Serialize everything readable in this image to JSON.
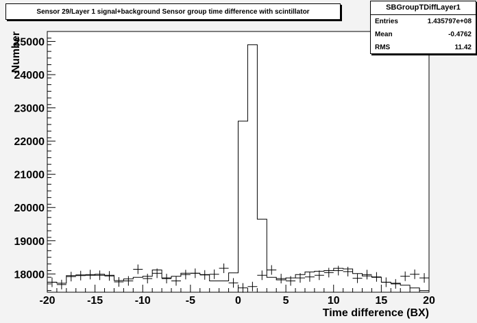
{
  "chart_data": {
    "type": "histogram",
    "title": "Sensor 29/Layer 1 signal+background Sensor group time difference with scintillator",
    "xlabel": "Time difference (BX)",
    "ylabel": "Number",
    "xlim": [
      -20,
      20
    ],
    "ylim": [
      17450,
      25300
    ],
    "x_ticks": [
      -20,
      -15,
      -10,
      -5,
      0,
      5,
      10,
      15,
      20
    ],
    "y_ticks": [
      18000,
      19000,
      20000,
      21000,
      22000,
      23000,
      24000,
      25000
    ],
    "stats": {
      "name": "SBGroupTDiffLayer1",
      "rows": [
        {
          "label": "Entries",
          "value": "1.435797e+08"
        },
        {
          "label": "Mean",
          "value": "-0.4762"
        },
        {
          "label": "RMS",
          "value": "11.42"
        }
      ]
    },
    "histogram": {
      "bin_width": 1,
      "bin_edges_start": -20,
      "values": [
        17750,
        17720,
        17950,
        17970,
        17960,
        17990,
        17960,
        17800,
        17850,
        17900,
        17930,
        18120,
        17880,
        17930,
        18020,
        18020,
        17980,
        17790,
        17790,
        18030,
        22600,
        24900,
        19650,
        17900,
        17820,
        17880,
        17980,
        18060,
        18080,
        18100,
        18170,
        18150,
        18010,
        17940,
        17900,
        17750,
        17720,
        17660,
        17580,
        17500
      ]
    },
    "markers": {
      "x": [
        -19.5,
        -18.5,
        -17.5,
        -16.5,
        -15.5,
        -14.5,
        -13.5,
        -12.5,
        -11.5,
        -10.5,
        -9.5,
        -8.5,
        -7.5,
        -6.5,
        -5.5,
        -4.5,
        -3.5,
        -2.5,
        -1.5,
        -0.5,
        0.5,
        1.5,
        2.5,
        3.5,
        4.5,
        5.5,
        6.5,
        7.5,
        8.5,
        9.5,
        10.5,
        11.5,
        12.5,
        13.5,
        14.5,
        15.5,
        16.5,
        17.5,
        18.5,
        19.5
      ],
      "y": [
        17750,
        17680,
        17920,
        17950,
        17980,
        17960,
        17940,
        17760,
        17790,
        18140,
        17860,
        18020,
        17860,
        17790,
        17980,
        18020,
        17970,
        17990,
        18170,
        17730,
        17580,
        17620,
        17960,
        18120,
        17860,
        17790,
        17880,
        17910,
        17960,
        18040,
        18100,
        18070,
        17870,
        17980,
        17910,
        17750,
        17700,
        17930,
        17990,
        17880
      ]
    }
  }
}
